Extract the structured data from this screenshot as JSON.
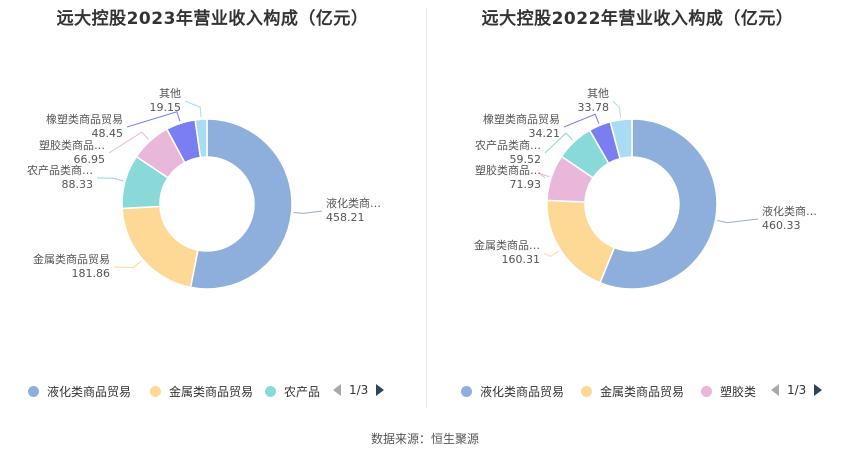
{
  "source": "数据来源：恒生聚源",
  "chart_data": [
    {
      "type": "pie",
      "title": "远大控股2023年营业收入构成（亿元）",
      "slices": [
        {
          "name": "液化类商品贸易",
          "label": "液化类商…",
          "value": 458.21,
          "color": "#8eaedb"
        },
        {
          "name": "金属类商品贸易",
          "label": "金属类商品贸易",
          "value": 181.86,
          "color": "#fdd995"
        },
        {
          "name": "农产品类商品贸易",
          "label": "农产品类商…",
          "value": 88.33,
          "color": "#89d9d9"
        },
        {
          "name": "塑胶类商品贸易",
          "label": "塑胶类商品…",
          "value": 66.95,
          "color": "#e8b7d9"
        },
        {
          "name": "橡塑类商品贸易",
          "label": "橡塑类商品贸易",
          "value": 48.45,
          "color": "#7b7ef0"
        },
        {
          "name": "其他",
          "label": "其他",
          "value": 19.15,
          "color": "#a9dcf4"
        }
      ],
      "legend": {
        "items": [
          {
            "label": "液化类商品贸易",
            "color": "#8eaedb"
          },
          {
            "label": "金属类商品贸易",
            "color": "#fdd995"
          },
          {
            "label": "农产品",
            "color": "#89d9d9"
          }
        ],
        "page": "1/3"
      }
    },
    {
      "type": "pie",
      "title": "远大控股2022年营业收入构成（亿元）",
      "slices": [
        {
          "name": "液化类商品贸易",
          "label": "液化类商…",
          "value": 460.33,
          "color": "#8eaedb"
        },
        {
          "name": "金属类商品贸易",
          "label": "金属类商品…",
          "value": 160.31,
          "color": "#fdd995"
        },
        {
          "name": "塑胶类商品贸易",
          "label": "塑胶类商品…",
          "value": 71.93,
          "color": "#e8b7d9"
        },
        {
          "name": "农产品类商品贸易",
          "label": "农产品类商…",
          "value": 59.52,
          "color": "#89d9d9"
        },
        {
          "name": "橡塑类商品贸易",
          "label": "橡塑类商品贸易",
          "value": 34.21,
          "color": "#7b7ef0"
        },
        {
          "name": "其他",
          "label": "其他",
          "value": 33.78,
          "color": "#a9dcf4"
        }
      ],
      "legend": {
        "items": [
          {
            "label": "液化类商品贸易",
            "color": "#8eaedb"
          },
          {
            "label": "金属类商品贸易",
            "color": "#fdd995"
          },
          {
            "label": "塑胶类",
            "color": "#e8b7d9"
          }
        ],
        "page": "1/3"
      }
    }
  ]
}
